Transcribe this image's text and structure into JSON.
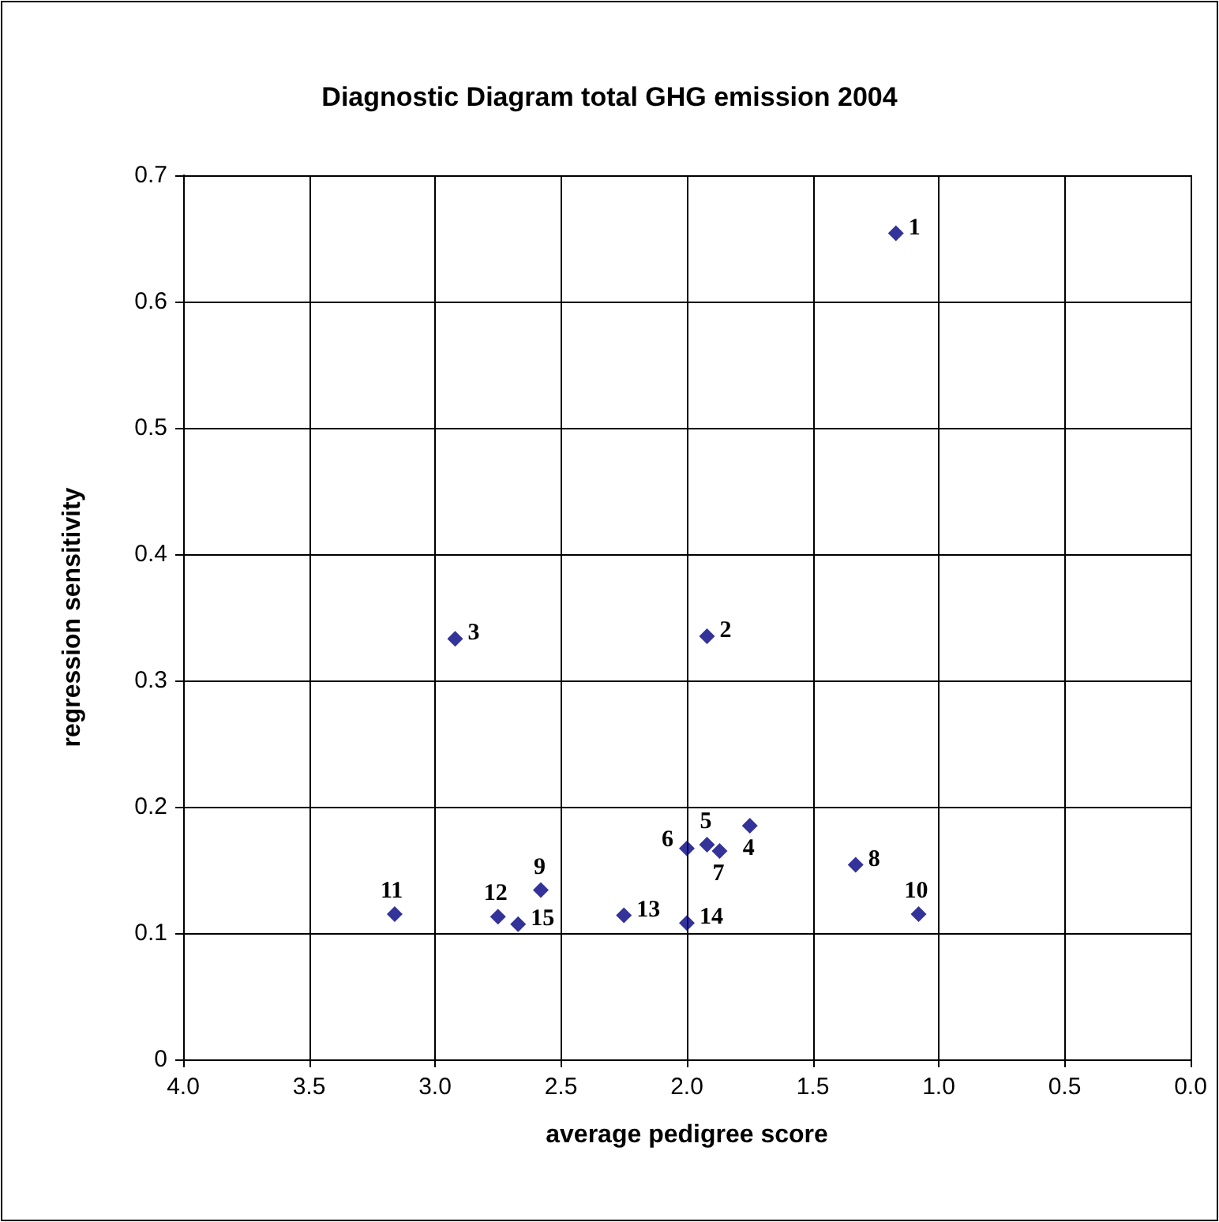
{
  "chart_data": {
    "type": "scatter",
    "title": "Diagnostic Diagram total GHG emission 2004",
    "xlabel": "average pedigree score",
    "ylabel": "regression sensitivity",
    "x": [
      1.17,
      1.92,
      2.92,
      1.75,
      1.92,
      2.0,
      1.87,
      1.33,
      2.58,
      1.08,
      3.16,
      2.75,
      2.25,
      2.0,
      2.67
    ],
    "values": [
      0.654,
      0.335,
      0.333,
      0.185,
      0.17,
      0.167,
      0.165,
      0.154,
      0.134,
      0.115,
      0.115,
      0.113,
      0.114,
      0.108,
      0.107
    ],
    "color": "#000080",
    "marker": "diamond",
    "grid": true,
    "xlim": [
      4,
      0
    ],
    "xticks": [
      {
        "value": 4,
        "label": "4.0"
      },
      {
        "value": 3.5,
        "label": "3.5"
      },
      {
        "value": 3,
        "label": "3.0"
      },
      {
        "value": 2.5,
        "label": "2.5"
      },
      {
        "value": 2,
        "label": "2.0"
      },
      {
        "value": 1.5,
        "label": "1.5"
      },
      {
        "value": 1,
        "label": "1.0"
      },
      {
        "value": 0.5,
        "label": "0.5"
      },
      {
        "value": 0,
        "label": "0.0"
      }
    ],
    "ylim": [
      0,
      0.7
    ],
    "yticks": [
      0,
      0.1,
      0.2,
      0.3,
      0.4,
      0.5,
      0.6,
      0.7
    ],
    "annotations": [
      {
        "text": "1",
        "x": 1.17,
        "y": 0.654
      },
      {
        "text": "2",
        "x": 1.92,
        "y": 0.335
      },
      {
        "text": "3",
        "x": 2.92,
        "y": 0.333
      },
      {
        "text": "4",
        "x": 1.75,
        "y": 0.185
      },
      {
        "text": "5",
        "x": 1.92,
        "y": 0.17
      },
      {
        "text": "6",
        "x": 2.0,
        "y": 0.167
      },
      {
        "text": "7",
        "x": 1.87,
        "y": 0.165
      },
      {
        "text": "8",
        "x": 1.33,
        "y": 0.154
      },
      {
        "text": "9",
        "x": 2.58,
        "y": 0.134
      },
      {
        "text": "10",
        "x": 1.08,
        "y": 0.115
      },
      {
        "text": "11",
        "x": 3.16,
        "y": 0.115
      },
      {
        "text": "12",
        "x": 2.75,
        "y": 0.113
      },
      {
        "text": "13",
        "x": 2.25,
        "y": 0.114
      },
      {
        "text": "14",
        "x": 2.0,
        "y": 0.108
      },
      {
        "text": "15",
        "x": 2.67,
        "y": 0.107
      }
    ]
  }
}
